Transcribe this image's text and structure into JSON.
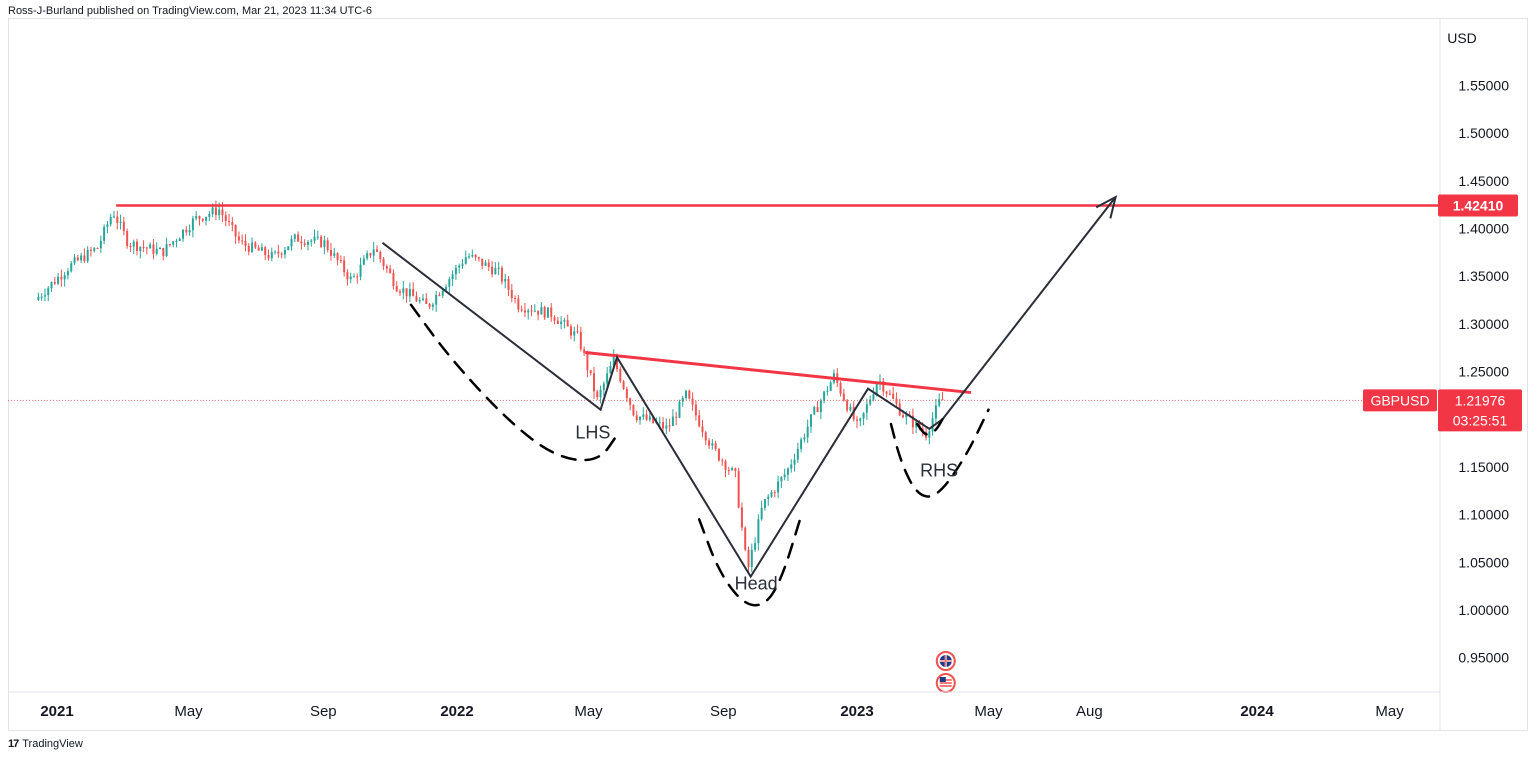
{
  "header": {
    "publisher_line": "Ross-J-Burland published on TradingView.com, Mar 21, 2023 11:34 UTC-6"
  },
  "footer": {
    "logo_glyph": "17",
    "brand": "TradingView"
  },
  "colors": {
    "up": "#26a69a",
    "down": "#ef5350",
    "resistance": "#f23645",
    "drawing": "#2a2e39",
    "axis_text": "#131722",
    "badge": "#f23645"
  },
  "chart_data": {
    "type": "candlestick",
    "symbol": "GBPUSD",
    "currency_label": "USD",
    "last_price": "1.21976",
    "countdown": "03:25:51",
    "resistance_level": "1.42410",
    "ylim": [
      0.915,
      1.59
    ],
    "y_ticks": [
      "0.95000",
      "1.00000",
      "1.05000",
      "1.10000",
      "1.15000",
      "1.25000",
      "1.30000",
      "1.35000",
      "1.40000",
      "1.45000",
      "1.50000",
      "1.55000"
    ],
    "x_axis": [
      {
        "label": "2021",
        "date": "2021-01-01",
        "bold": true
      },
      {
        "label": "May",
        "date": "2021-05-01",
        "bold": false
      },
      {
        "label": "Sep",
        "date": "2021-09-01",
        "bold": false
      },
      {
        "label": "2022",
        "date": "2022-01-01",
        "bold": true
      },
      {
        "label": "May",
        "date": "2022-05-01",
        "bold": false
      },
      {
        "label": "Sep",
        "date": "2022-09-01",
        "bold": false
      },
      {
        "label": "2023",
        "date": "2023-01-01",
        "bold": true
      },
      {
        "label": "May",
        "date": "2023-05-01",
        "bold": false
      },
      {
        "label": "Aug",
        "date": "2023-08-01",
        "bold": false
      },
      {
        "label": "2024",
        "date": "2024-01-01",
        "bold": true
      },
      {
        "label": "May",
        "date": "2024-05-01",
        "bold": false
      }
    ],
    "price_path": [
      [
        "2020-12-15",
        1.325
      ],
      [
        "2021-01-15",
        1.36
      ],
      [
        "2021-02-10",
        1.38
      ],
      [
        "2021-02-24",
        1.418
      ],
      [
        "2021-03-10",
        1.385
      ],
      [
        "2021-04-10",
        1.375
      ],
      [
        "2021-05-10",
        1.41
      ],
      [
        "2021-06-01",
        1.42
      ],
      [
        "2021-06-20",
        1.385
      ],
      [
        "2021-07-20",
        1.37
      ],
      [
        "2021-08-10",
        1.39
      ],
      [
        "2021-09-05",
        1.385
      ],
      [
        "2021-09-30",
        1.345
      ],
      [
        "2021-10-20",
        1.38
      ],
      [
        "2021-11-10",
        1.34
      ],
      [
        "2021-12-08",
        1.318
      ],
      [
        "2022-01-13",
        1.372
      ],
      [
        "2022-02-10",
        1.355
      ],
      [
        "2022-03-01",
        1.32
      ],
      [
        "2022-04-01",
        1.31
      ],
      [
        "2022-04-25",
        1.285
      ],
      [
        "2022-05-12",
        1.22
      ],
      [
        "2022-05-27",
        1.262
      ],
      [
        "2022-06-15",
        1.205
      ],
      [
        "2022-07-15",
        1.19
      ],
      [
        "2022-08-01",
        1.225
      ],
      [
        "2022-08-25",
        1.17
      ],
      [
        "2022-09-15",
        1.14
      ],
      [
        "2022-09-26",
        1.04
      ],
      [
        "2022-10-10",
        1.11
      ],
      [
        "2022-11-01",
        1.145
      ],
      [
        "2022-11-25",
        1.205
      ],
      [
        "2022-12-14",
        1.245
      ],
      [
        "2023-01-05",
        1.19
      ],
      [
        "2023-01-23",
        1.243
      ],
      [
        "2023-02-15",
        1.205
      ],
      [
        "2023-03-08",
        1.185
      ],
      [
        "2023-03-21",
        1.22
      ]
    ],
    "resistance_line": {
      "from": "2021-02-24",
      "value": 1.4241
    },
    "neckline": [
      [
        "2022-04-28",
        1.27
      ],
      [
        "2023-04-15",
        1.228
      ]
    ],
    "pattern_path": [
      [
        "2021-10-25",
        1.385
      ],
      [
        "2022-05-12",
        1.21
      ],
      [
        "2022-05-27",
        1.265
      ],
      [
        "2022-09-26",
        1.035
      ],
      [
        "2023-01-11",
        1.232
      ],
      [
        "2023-03-08",
        1.19
      ],
      [
        "2023-03-20",
        1.2
      ],
      [
        "2023-08-25",
        1.433
      ]
    ],
    "dashed_curves": [
      {
        "name": "lhs-curve",
        "points": [
          [
            "2021-11-20",
            1.32
          ],
          [
            "2021-12-25",
            1.265
          ],
          [
            "2022-02-15",
            1.2
          ],
          [
            "2022-04-01",
            1.16
          ],
          [
            "2022-05-10",
            1.155
          ],
          [
            "2022-05-28",
            1.185
          ]
        ]
      },
      {
        "name": "head-curve",
        "points": [
          [
            "2022-08-10",
            1.095
          ],
          [
            "2022-08-28",
            1.04
          ],
          [
            "2022-09-20",
            1.005
          ],
          [
            "2022-10-10",
            1.005
          ],
          [
            "2022-10-25",
            1.035
          ],
          [
            "2022-11-10",
            1.095
          ]
        ]
      },
      {
        "name": "rhs-curve",
        "points": [
          [
            "2023-02-01",
            1.195
          ],
          [
            "2023-02-10",
            1.155
          ],
          [
            "2023-02-25",
            1.12
          ],
          [
            "2023-03-15",
            1.118
          ],
          [
            "2023-04-10",
            1.16
          ],
          [
            "2023-05-01",
            1.21
          ]
        ]
      },
      {
        "name": "rhs-small-curve",
        "points": [
          [
            "2023-02-25",
            1.195
          ],
          [
            "2023-03-05",
            1.182
          ],
          [
            "2023-03-14",
            1.188
          ],
          [
            "2023-03-20",
            1.2
          ]
        ]
      }
    ],
    "annotations": [
      {
        "text": "LHS",
        "date": "2022-05-05",
        "value": 1.18
      },
      {
        "text": "Head",
        "date": "2022-10-01",
        "value": 1.0215
      },
      {
        "text": "RHS",
        "date": "2023-03-17",
        "value": 1.14
      }
    ],
    "event_markers": [
      {
        "icon": "uk-flag-icon",
        "date": "2023-03-23"
      },
      {
        "icon": "us-flag-icon",
        "date": "2023-03-23"
      }
    ]
  }
}
